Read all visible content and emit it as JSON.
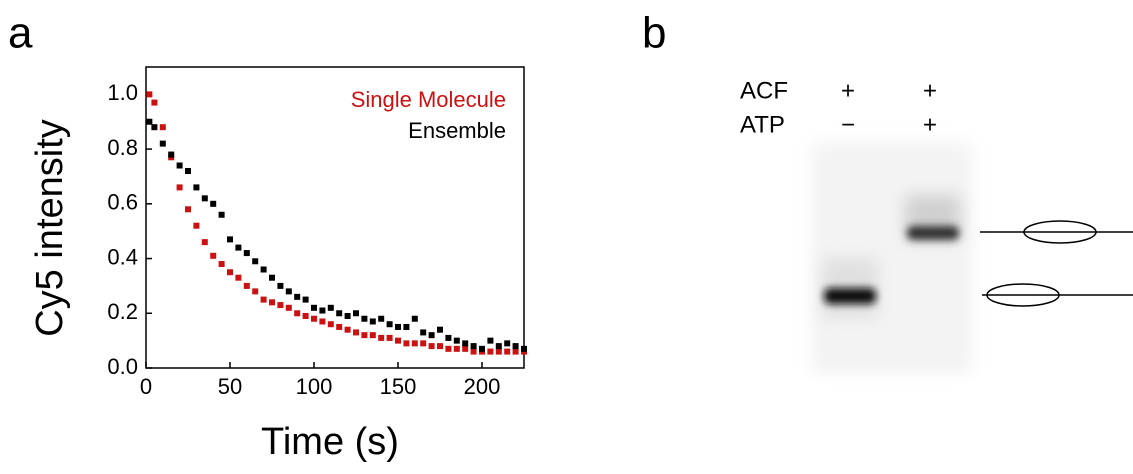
{
  "panels": [
    "a",
    "b"
  ],
  "chart_data": {
    "type": "scatter",
    "xlabel": "Time (s)",
    "ylabel": "Cy5 intensity",
    "x": [
      2,
      5,
      10,
      15,
      20,
      25,
      30,
      35,
      40,
      45,
      50,
      55,
      60,
      65,
      70,
      75,
      80,
      85,
      90,
      95,
      100,
      105,
      110,
      115,
      120,
      125,
      130,
      135,
      140,
      145,
      150,
      155,
      160,
      165,
      170,
      175,
      180,
      185,
      190,
      195,
      200,
      205,
      210,
      215,
      220,
      225
    ],
    "series": [
      {
        "name": "Single Molecule",
        "color": "#cc1111",
        "values": [
          1.0,
          0.97,
          0.88,
          0.77,
          0.66,
          0.58,
          0.52,
          0.46,
          0.41,
          0.38,
          0.35,
          0.33,
          0.3,
          0.28,
          0.25,
          0.24,
          0.23,
          0.22,
          0.2,
          0.19,
          0.18,
          0.17,
          0.16,
          0.15,
          0.14,
          0.13,
          0.12,
          0.12,
          0.11,
          0.11,
          0.1,
          0.09,
          0.09,
          0.09,
          0.08,
          0.08,
          0.07,
          0.07,
          0.07,
          0.06,
          0.06,
          0.06,
          0.06,
          0.06,
          0.06,
          0.06
        ]
      },
      {
        "name": "Ensemble",
        "color": "#000000",
        "values": [
          0.9,
          0.88,
          0.82,
          0.78,
          0.74,
          0.72,
          0.66,
          0.62,
          0.6,
          0.56,
          0.47,
          0.44,
          0.42,
          0.39,
          0.36,
          0.33,
          0.3,
          0.28,
          0.26,
          0.25,
          0.22,
          0.21,
          0.22,
          0.2,
          0.19,
          0.2,
          0.18,
          0.17,
          0.18,
          0.16,
          0.15,
          0.15,
          0.18,
          0.13,
          0.12,
          0.14,
          0.11,
          0.1,
          0.09,
          0.08,
          0.07,
          0.1,
          0.08,
          0.09,
          0.08,
          0.07
        ]
      }
    ],
    "xlim": [
      0,
      225
    ],
    "ylim": [
      0,
      1.1
    ],
    "xticks": [
      0,
      50,
      100,
      150,
      200
    ],
    "yticks": [
      {
        "value": 0,
        "label": "0.0"
      },
      0.2,
      0.4,
      0.6,
      0.8,
      {
        "value": 1,
        "label": "1.0"
      }
    ],
    "legend": "upper right"
  },
  "gel": {
    "rows": [
      {
        "label": "ACF",
        "lanes": [
          "+",
          "+"
        ]
      },
      {
        "label": "ATP",
        "lanes": [
          "−",
          "+"
        ]
      }
    ]
  }
}
